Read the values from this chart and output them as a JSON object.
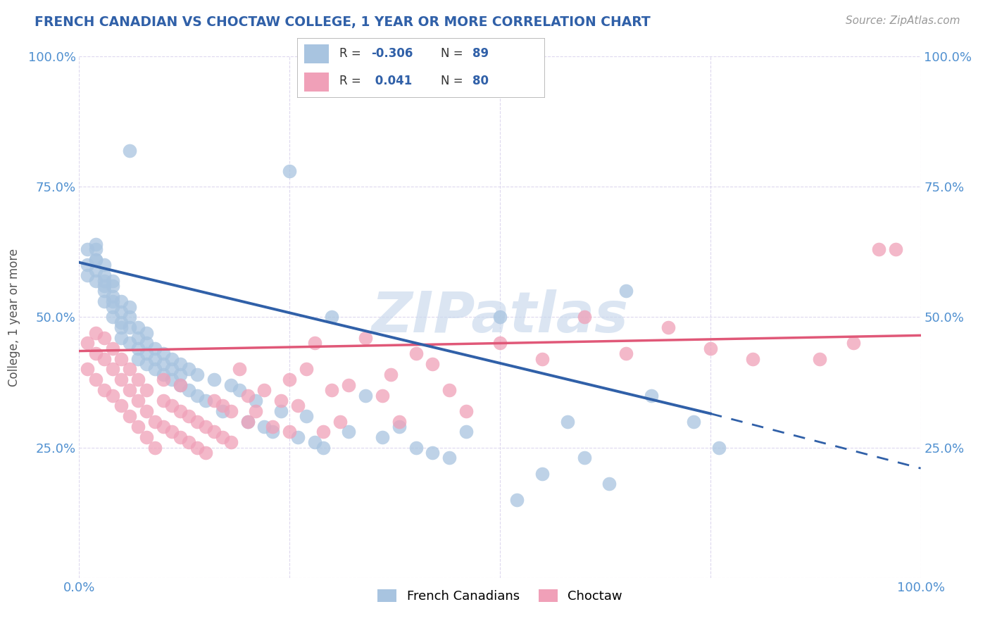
{
  "title": "FRENCH CANADIAN VS CHOCTAW COLLEGE, 1 YEAR OR MORE CORRELATION CHART",
  "source": "Source: ZipAtlas.com",
  "ylabel": "College, 1 year or more",
  "xlim": [
    0,
    1
  ],
  "ylim": [
    0,
    1
  ],
  "blue_R": -0.306,
  "blue_N": 89,
  "pink_R": 0.041,
  "pink_N": 80,
  "blue_color": "#a8c4e0",
  "pink_color": "#f0a0b8",
  "blue_line_color": "#3060a8",
  "pink_line_color": "#e05878",
  "grid_color": "#ddd8ee",
  "title_color": "#3060a8",
  "tick_color": "#5090d0",
  "watermark": "ZIPatlas",
  "watermark_color": "#c8d8ec",
  "legend_label_blue": "French Canadians",
  "legend_label_pink": "Choctaw",
  "blue_line_x0": 0.0,
  "blue_line_y0": 0.605,
  "blue_line_x1": 0.75,
  "blue_line_y1": 0.315,
  "blue_line_ext_x1": 1.0,
  "blue_line_ext_y1": 0.21,
  "pink_line_x0": 0.0,
  "pink_line_y0": 0.435,
  "pink_line_x1": 1.0,
  "pink_line_y1": 0.465,
  "blue_scatter_x": [
    0.01,
    0.01,
    0.01,
    0.02,
    0.02,
    0.02,
    0.02,
    0.02,
    0.02,
    0.03,
    0.03,
    0.03,
    0.03,
    0.03,
    0.03,
    0.04,
    0.04,
    0.04,
    0.04,
    0.04,
    0.04,
    0.05,
    0.05,
    0.05,
    0.05,
    0.05,
    0.06,
    0.06,
    0.06,
    0.06,
    0.06,
    0.07,
    0.07,
    0.07,
    0.07,
    0.08,
    0.08,
    0.08,
    0.08,
    0.09,
    0.09,
    0.09,
    0.1,
    0.1,
    0.1,
    0.11,
    0.11,
    0.11,
    0.12,
    0.12,
    0.12,
    0.13,
    0.13,
    0.14,
    0.14,
    0.15,
    0.16,
    0.17,
    0.18,
    0.19,
    0.2,
    0.21,
    0.22,
    0.23,
    0.24,
    0.25,
    0.26,
    0.27,
    0.28,
    0.29,
    0.3,
    0.32,
    0.34,
    0.36,
    0.38,
    0.4,
    0.42,
    0.44,
    0.46,
    0.5,
    0.52,
    0.55,
    0.58,
    0.6,
    0.63,
    0.65,
    0.68,
    0.73,
    0.76
  ],
  "blue_scatter_y": [
    0.6,
    0.63,
    0.58,
    0.61,
    0.59,
    0.57,
    0.63,
    0.61,
    0.64,
    0.58,
    0.56,
    0.6,
    0.55,
    0.53,
    0.57,
    0.54,
    0.52,
    0.56,
    0.5,
    0.57,
    0.53,
    0.51,
    0.49,
    0.53,
    0.48,
    0.46,
    0.82,
    0.5,
    0.48,
    0.45,
    0.52,
    0.46,
    0.48,
    0.44,
    0.42,
    0.43,
    0.47,
    0.41,
    0.45,
    0.4,
    0.44,
    0.42,
    0.39,
    0.43,
    0.41,
    0.38,
    0.42,
    0.4,
    0.37,
    0.41,
    0.39,
    0.36,
    0.4,
    0.35,
    0.39,
    0.34,
    0.38,
    0.32,
    0.37,
    0.36,
    0.3,
    0.34,
    0.29,
    0.28,
    0.32,
    0.78,
    0.27,
    0.31,
    0.26,
    0.25,
    0.5,
    0.28,
    0.35,
    0.27,
    0.29,
    0.25,
    0.24,
    0.23,
    0.28,
    0.5,
    0.15,
    0.2,
    0.3,
    0.23,
    0.18,
    0.55,
    0.35,
    0.3,
    0.25
  ],
  "pink_scatter_x": [
    0.01,
    0.01,
    0.02,
    0.02,
    0.02,
    0.03,
    0.03,
    0.03,
    0.04,
    0.04,
    0.04,
    0.05,
    0.05,
    0.05,
    0.06,
    0.06,
    0.06,
    0.07,
    0.07,
    0.07,
    0.08,
    0.08,
    0.08,
    0.09,
    0.09,
    0.1,
    0.1,
    0.1,
    0.11,
    0.11,
    0.12,
    0.12,
    0.12,
    0.13,
    0.13,
    0.14,
    0.14,
    0.15,
    0.15,
    0.16,
    0.16,
    0.17,
    0.17,
    0.18,
    0.18,
    0.19,
    0.2,
    0.2,
    0.21,
    0.22,
    0.23,
    0.24,
    0.25,
    0.25,
    0.26,
    0.27,
    0.28,
    0.29,
    0.3,
    0.31,
    0.32,
    0.34,
    0.36,
    0.37,
    0.38,
    0.4,
    0.42,
    0.44,
    0.46,
    0.5,
    0.55,
    0.6,
    0.65,
    0.7,
    0.75,
    0.8,
    0.88,
    0.92,
    0.95,
    0.97
  ],
  "pink_scatter_y": [
    0.45,
    0.4,
    0.43,
    0.47,
    0.38,
    0.42,
    0.36,
    0.46,
    0.4,
    0.35,
    0.44,
    0.38,
    0.33,
    0.42,
    0.36,
    0.31,
    0.4,
    0.34,
    0.29,
    0.38,
    0.32,
    0.27,
    0.36,
    0.3,
    0.25,
    0.34,
    0.29,
    0.38,
    0.28,
    0.33,
    0.27,
    0.32,
    0.37,
    0.26,
    0.31,
    0.25,
    0.3,
    0.24,
    0.29,
    0.28,
    0.34,
    0.27,
    0.33,
    0.26,
    0.32,
    0.4,
    0.35,
    0.3,
    0.32,
    0.36,
    0.29,
    0.34,
    0.28,
    0.38,
    0.33,
    0.4,
    0.45,
    0.28,
    0.36,
    0.3,
    0.37,
    0.46,
    0.35,
    0.39,
    0.3,
    0.43,
    0.41,
    0.36,
    0.32,
    0.45,
    0.42,
    0.5,
    0.43,
    0.48,
    0.44,
    0.42,
    0.42,
    0.45,
    0.63,
    0.63
  ]
}
